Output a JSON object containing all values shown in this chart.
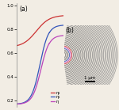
{
  "title_a": "(a)",
  "title_b": "(b)",
  "ylim": [
    0.15,
    1.02
  ],
  "yticks": [
    0.2,
    0.4,
    0.6,
    0.8,
    1.0
  ],
  "line_eta2_color": "#cc3333",
  "line_eta1_color": "#3355bb",
  "line_eta_color": "#bb44bb",
  "legend_labels": [
    "η₂",
    "η₁",
    "η"
  ],
  "scale_bar_label": "1 μm",
  "bg_color": "#f2ede4",
  "arc_color_red": "#cc3333",
  "arc_color_blue": "#3355bb",
  "arc_color_purple": "#bb44bb"
}
